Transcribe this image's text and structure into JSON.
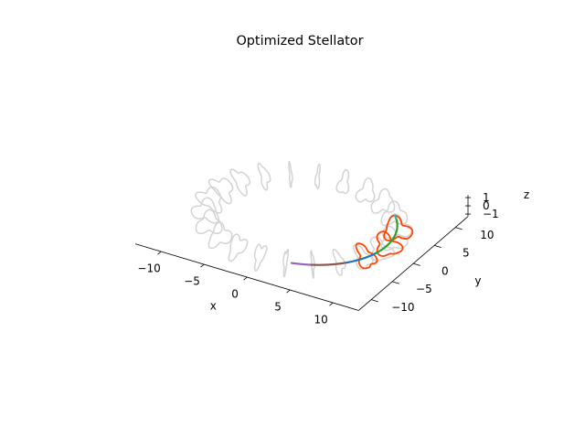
{
  "chart_data": {
    "type": "3d-line",
    "title": "Optimized Stellator",
    "grid": false,
    "axes": {
      "x": {
        "label": "x",
        "range": [
          -13,
          13
        ],
        "ticks": [
          -10,
          -5,
          0,
          5,
          10
        ]
      },
      "y": {
        "label": "y",
        "range": [
          -13,
          13
        ],
        "ticks": [
          -10,
          -5,
          0,
          5,
          10
        ]
      },
      "z": {
        "label": "z",
        "range": [
          -1.3,
          1.3
        ],
        "ticks": [
          -1,
          0,
          1
        ]
      }
    },
    "torus": {
      "major_radius": 10,
      "minor_radius": 1.3
    },
    "series": [
      {
        "color": "#d3d3d3",
        "kind": "coil-set",
        "count": 22,
        "phi_start_deg": 0,
        "phi_end_deg": 360,
        "minor_radius": 1.3
      },
      {
        "color": "#ff4500",
        "kind": "coil-set",
        "count": 3,
        "phi_start_deg": -22,
        "phi_end_deg": 22,
        "minor_radius": 1.35
      },
      {
        "color": "#9467bd",
        "kind": "axis-segment",
        "phi_start_deg": -70,
        "phi_end_deg": -58
      },
      {
        "color": "#8c564b",
        "kind": "axis-segment",
        "phi_start_deg": -58,
        "phi_end_deg": -36
      },
      {
        "color": "#1f77b4",
        "kind": "axis-segment",
        "phi_start_deg": -36,
        "phi_end_deg": -12
      },
      {
        "color": "#2ca02c",
        "kind": "axis-segment",
        "phi_start_deg": -12,
        "phi_end_deg": 36
      },
      {
        "color": "#17becf",
        "kind": "axis-segment",
        "phi_start_deg": 36,
        "phi_end_deg": 39
      }
    ]
  }
}
